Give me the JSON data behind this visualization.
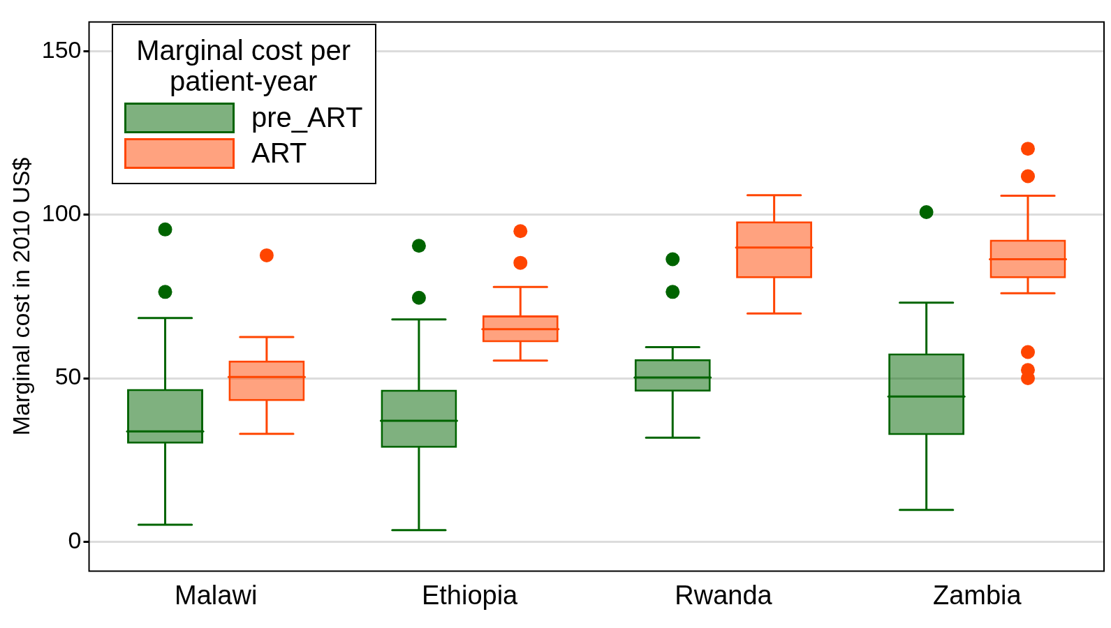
{
  "chart_data": {
    "type": "box",
    "categories": [
      "Malawi",
      "Ethiopia",
      "Rwanda",
      "Zambia"
    ],
    "ylabel": "Marginal cost in 2010 US$",
    "legend_title": "Marginal cost per patient-year",
    "legend": "top left",
    "grid": "y",
    "ylim": [
      -9,
      159
    ],
    "yticks": [
      0,
      50,
      100,
      150
    ],
    "series": [
      {
        "name": "pre_ART",
        "color": "#006400",
        "boxes": [
          {
            "low": 5.2,
            "q1": 30,
            "median": 33.7,
            "q3": 46.7,
            "high": 68.4,
            "outliers": [
              95.5,
              76.4
            ]
          },
          {
            "low": 3.5,
            "q1": 28.7,
            "median": 37,
            "q3": 46.5,
            "high": 68,
            "outliers": [
              90.5,
              74.6
            ]
          },
          {
            "low": 31.8,
            "q1": 45.9,
            "median": 50.2,
            "q3": 55.8,
            "high": 59.5,
            "outliers": [
              86.4,
              76.4
            ]
          },
          {
            "low": 9.7,
            "q1": 32.6,
            "median": 44.4,
            "q3": 57.6,
            "high": 73.1,
            "outliers": [
              100.8
            ]
          }
        ]
      },
      {
        "name": "ART",
        "color": "#ff4500",
        "boxes": [
          {
            "low": 33,
            "q1": 43,
            "median": 50.4,
            "q3": 55.4,
            "high": 62.6,
            "outliers": [
              87.6
            ]
          },
          {
            "low": 55.4,
            "q1": 61,
            "median": 65,
            "q3": 69.2,
            "high": 77.9,
            "outliers": [
              95,
              85.3
            ]
          },
          {
            "low": 69.8,
            "q1": 80.6,
            "median": 90,
            "q3": 98,
            "high": 106
          },
          {
            "low": 76,
            "q1": 80.6,
            "median": 86.4,
            "q3": 92.4,
            "high": 105.8,
            "outliers": [
              120.2,
              111.8,
              58,
              52.5,
              50
            ]
          }
        ]
      }
    ]
  }
}
